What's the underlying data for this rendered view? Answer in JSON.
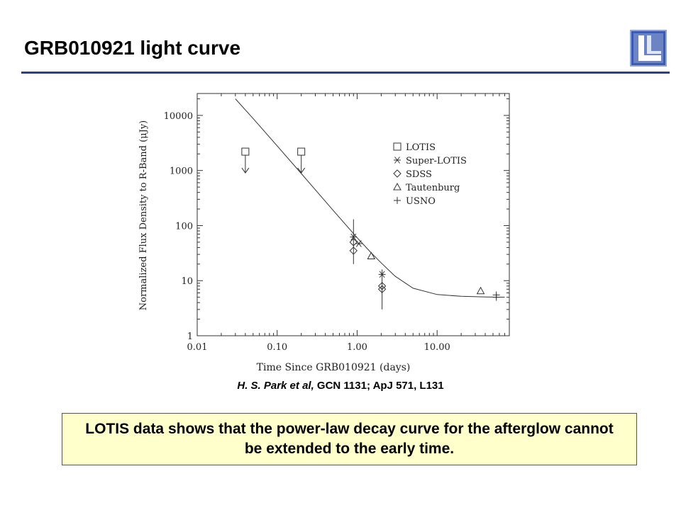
{
  "slide": {
    "title": "GRB010921 light curve",
    "citation_authors": "H. S. Park et al,",
    "citation_refs": " GCN 1131; ApJ 571, L131",
    "conclusion": "LOTIS data shows that the power-law decay curve for the afterglow cannot be extended to the early time."
  },
  "logo": {
    "icon": "llnl-logo-icon",
    "color": "#3b5bb0"
  },
  "colors": {
    "title_rule": "#2a3f8f",
    "conclusion_bg": "#ffffcc"
  },
  "chart_data": {
    "type": "scatter",
    "xlabel": "Time Since GRB010921 (days)",
    "ylabel": "Normalized Flux Density to R-Band (μJy)",
    "xscale": "log",
    "yscale": "log",
    "xlim": [
      0.01,
      80
    ],
    "ylim": [
      1,
      25000
    ],
    "xticks": [
      0.01,
      0.1,
      1,
      10
    ],
    "xtick_labels": [
      "0.01",
      "0.10",
      "1.00",
      "10.00"
    ],
    "yticks": [
      1,
      10,
      100,
      1000,
      10000
    ],
    "ytick_labels": [
      "1",
      "10",
      "100",
      "1000",
      "10000"
    ],
    "legend_position": "right",
    "series": [
      {
        "name": "LOTIS",
        "marker": "square",
        "upper_limit": true,
        "points": [
          {
            "x": 0.04,
            "y": 2200
          },
          {
            "x": 0.2,
            "y": 2200
          }
        ]
      },
      {
        "name": "Super-LOTIS",
        "marker": "asterisk",
        "points": [
          {
            "x": 0.9,
            "y": 62
          },
          {
            "x": 1.05,
            "y": 47
          },
          {
            "x": 2.05,
            "y": 13
          }
        ]
      },
      {
        "name": "SDSS",
        "marker": "diamond",
        "points": [
          {
            "x": 0.9,
            "y": 50,
            "ylo": 20,
            "yhi": 130
          },
          {
            "x": 0.9,
            "y": 35
          },
          {
            "x": 2.05,
            "y": 8,
            "ylo": 3,
            "yhi": 16
          },
          {
            "x": 2.05,
            "y": 7
          }
        ]
      },
      {
        "name": "Tautenburg",
        "marker": "triangle",
        "points": [
          {
            "x": 1.5,
            "y": 28
          },
          {
            "x": 35,
            "y": 6.5
          }
        ]
      },
      {
        "name": "USNO",
        "marker": "plus",
        "points": [
          {
            "x": 55,
            "y": 5.5
          },
          {
            "x": 55,
            "y": 5
          }
        ]
      }
    ],
    "model_curve": {
      "label": "power-law decay + constant",
      "points": [
        [
          0.03,
          20000
        ],
        [
          0.05,
          8800
        ],
        [
          0.1,
          2800
        ],
        [
          0.2,
          880
        ],
        [
          0.5,
          190
        ],
        [
          1.0,
          60
        ],
        [
          1.5,
          32
        ],
        [
          2.0,
          21
        ],
        [
          3.0,
          12
        ],
        [
          5.0,
          7.3
        ],
        [
          10.0,
          5.6
        ],
        [
          20.0,
          5.2
        ],
        [
          40.0,
          5.05
        ],
        [
          70.0,
          5.0
        ]
      ]
    }
  }
}
